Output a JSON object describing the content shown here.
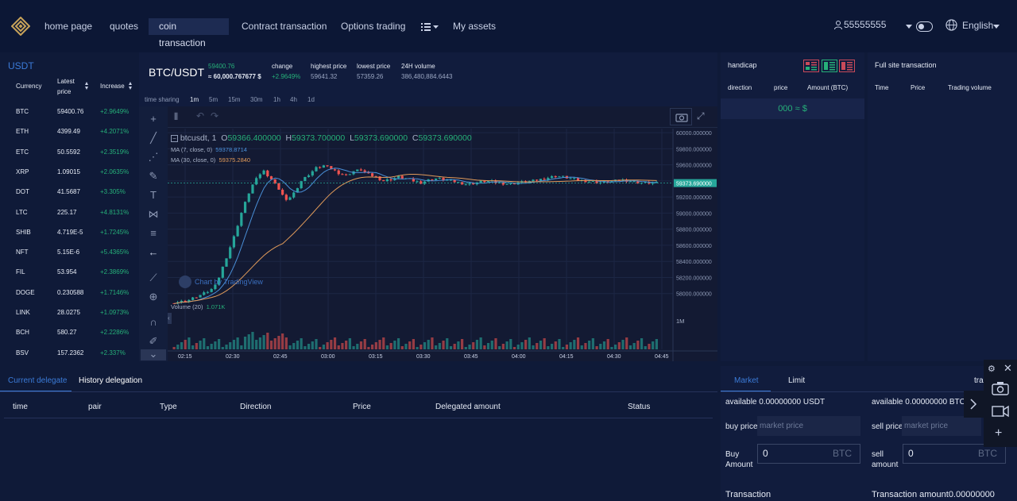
{
  "nav": {
    "items": [
      {
        "label": "home page",
        "active": false
      },
      {
        "label": "quotes",
        "active": false
      },
      {
        "label": "coin transaction",
        "active": true
      },
      {
        "label": "Contract transaction",
        "active": false
      },
      {
        "label": "Options trading",
        "active": false
      },
      {
        "label": "My assets",
        "active": false
      }
    ],
    "user": "55555555",
    "language": "English"
  },
  "market_list": {
    "tab": "USDT",
    "headers": {
      "currency": "Currency",
      "latest_price_1": "Latest",
      "latest_price_2": "price",
      "increase": "Increase"
    },
    "rows": [
      {
        "name": "BTC",
        "price": "59400.76",
        "increase": "+2.9649%"
      },
      {
        "name": "ETH",
        "price": "4399.49",
        "increase": "+4.2071%"
      },
      {
        "name": "ETC",
        "price": "50.5592",
        "increase": "+2.3519%"
      },
      {
        "name": "XRP",
        "price": "1.09015",
        "increase": "+2.0635%"
      },
      {
        "name": "DOT",
        "price": "41.5687",
        "increase": "+3.305%"
      },
      {
        "name": "LTC",
        "price": "225.17",
        "increase": "+4.8131%"
      },
      {
        "name": "SHIB",
        "price": "4.719E-5",
        "increase": "+1.7245%"
      },
      {
        "name": "NFT",
        "price": "5.15E-6",
        "increase": "+5.4365%"
      },
      {
        "name": "FIL",
        "price": "53.954",
        "increase": "+2.3869%"
      },
      {
        "name": "DOGE",
        "price": "0.230588",
        "increase": "+1.7146%"
      },
      {
        "name": "LINK",
        "price": "28.0275",
        "increase": "+1.0973%"
      },
      {
        "name": "BCH",
        "price": "580.27",
        "increase": "+2.2286%"
      },
      {
        "name": "BSV",
        "price": "157.2362",
        "increase": "+2.337%"
      }
    ]
  },
  "ticker": {
    "pair": "BTC/USDT",
    "price": "59400.76",
    "price_usd": "≈ 60,000.767677 $",
    "change_label": "change",
    "change_value": "+2.9649%",
    "high_label": "highest price",
    "high_value": "59641.32",
    "low_label": "lowest price",
    "low_value": "57359.26",
    "volume_label": "24H volume",
    "volume_value": "386,480,884.6443"
  },
  "timeframes": [
    "time sharing",
    "1m",
    "5m",
    "15m",
    "30m",
    "1h",
    "4h",
    "1d"
  ],
  "active_timeframe": "1m",
  "chart": {
    "symbol_line": "btcusdt, 1",
    "ohlc": {
      "o_label": "O",
      "o": "59366.400000",
      "h_label": "H",
      "h": "59373.700000",
      "l_label": "L",
      "l": "59373.690000",
      "c_label": "C",
      "c": "59373.690000"
    },
    "ma7_label": "MA (7, close, 0)",
    "ma7_value": "59378.8714",
    "ma30_label": "MA (30, close, 0)",
    "ma30_value": "59375.2840",
    "volume_label": "Volume (20)",
    "volume_value": "1.071K",
    "current_price_tag": "59373.690000",
    "watermark": "Chart by TradingView",
    "volume_axis_label": "1M",
    "colors": {
      "up": "#26a69a",
      "down": "#ef5350",
      "ma7": "#4a90d9",
      "ma30": "#e09a5a"
    }
  },
  "chart_data": {
    "type": "candlestick",
    "title": "btcusdt, 1",
    "x_ticks": [
      "02:15",
      "02:30",
      "02:45",
      "03:00",
      "03:15",
      "03:30",
      "03:45",
      "04:00",
      "04:15",
      "04:30",
      "04:45"
    ],
    "y_ticks": [
      "60000.000000",
      "59800.000000",
      "59600.000000",
      "59400.000000",
      "59200.000000",
      "59000.000000",
      "58800.000000",
      "58600.000000",
      "58400.000000",
      "58200.000000",
      "58000.000000"
    ],
    "ylim": [
      57800,
      60050
    ],
    "close_series": [
      57890,
      57900,
      57920,
      57960,
      58000,
      58050,
      58200,
      58450,
      58700,
      59000,
      59250,
      59450,
      59520,
      59420,
      59300,
      59150,
      59250,
      59400,
      59480,
      59560,
      59590,
      59550,
      59500,
      59470,
      59520,
      59540,
      59480,
      59450,
      59400,
      59420,
      59450,
      59430,
      59400,
      59380,
      59410,
      59430,
      59420,
      59400,
      59380,
      59360,
      59370,
      59390,
      59400,
      59380,
      59370,
      59360,
      59380,
      59390,
      59400,
      59420,
      59440,
      59460,
      59450,
      59430,
      59410,
      59400,
      59390,
      59380,
      59390,
      59400,
      59410,
      59400,
      59380,
      59375,
      59373
    ]
  },
  "handicap": {
    "title": "handicap",
    "headers": [
      "direction",
      "price",
      "Amount (BTC)"
    ],
    "price_row": "000 ≈ $"
  },
  "full_site": {
    "title": "Full site transaction",
    "headers": [
      "Time",
      "Price",
      "Trading volume"
    ]
  },
  "delegation": {
    "tabs": [
      "Current delegate",
      "History delegation"
    ],
    "headers": [
      "time",
      "pair",
      "Type",
      "Direction",
      "Price",
      "Delegated amount",
      "Status"
    ]
  },
  "order_form": {
    "tabs": [
      "Market",
      "Limit"
    ],
    "extra_tab": "tra",
    "buy_available_label": "available",
    "buy_available_value": "0.00000000",
    "buy_available_unit": "USDT",
    "sell_available_label": "available",
    "sell_available_value": "0.00000000",
    "sell_available_unit": "BTC",
    "buy_price_label": "buy price",
    "buy_price_placeholder": "market price",
    "sell_price_label": "sell price",
    "sell_price_placeholder": "market price",
    "buy_amount_label_1": "Buy",
    "buy_amount_label_2": "Amount",
    "buy_amount_value": "0",
    "buy_amount_unit": "BTC",
    "sell_amount_label_1": "sell",
    "sell_amount_label_2": "amount",
    "sell_amount_value": "0",
    "sell_amount_unit": "BTC",
    "buy_transaction_label": "Transaction",
    "sell_transaction_label": "Transaction amount",
    "sell_transaction_value": "0.00000000"
  }
}
